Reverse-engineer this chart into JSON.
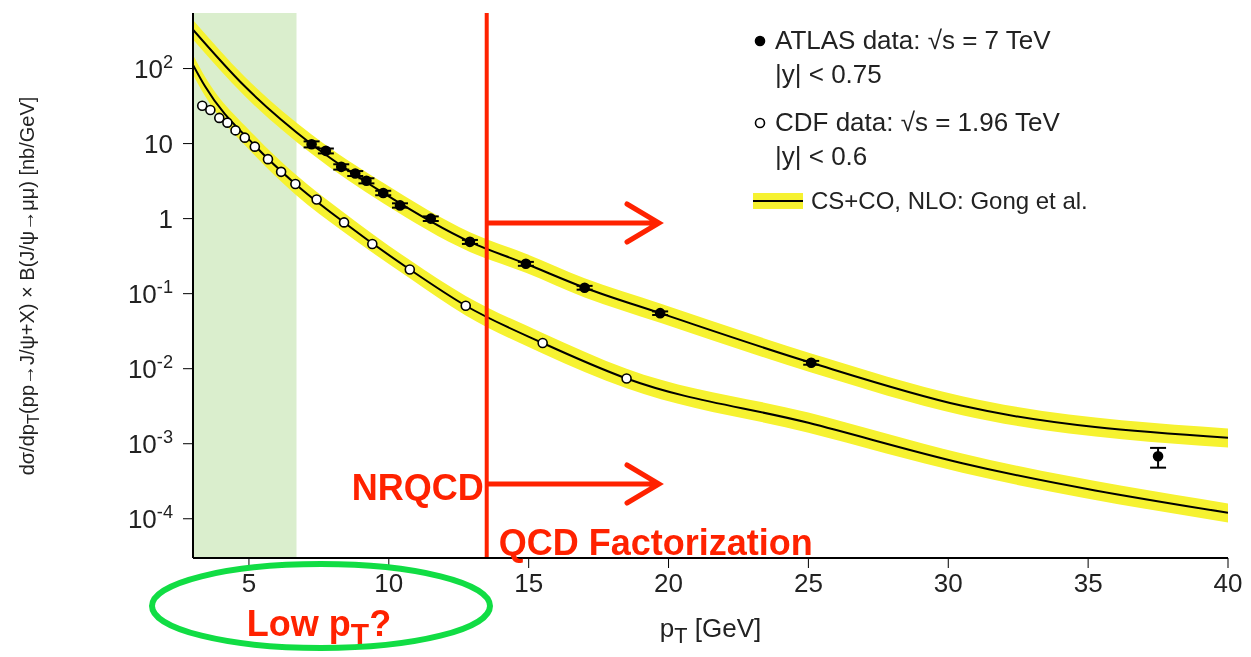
{
  "chart_data": {
    "type": "scatter",
    "xlabel": "p$_{T}$ [GeV]",
    "ylabel": "dσ/dp$_{T}$(pp→J/ψ+X) × B(J/ψ→μμ)  [nb/GeV]",
    "xlim": [
      3,
      40
    ],
    "xticks": [
      5,
      10,
      15,
      20,
      25,
      30,
      35,
      40
    ],
    "ylim": [
      3e-05,
      550
    ],
    "yticks": [
      {
        "value": 100,
        "label": "10$^{2}$"
      },
      10,
      1,
      {
        "value": 0.1,
        "label": "10$^{-1}$"
      },
      {
        "value": 0.01,
        "label": "10$^{-2}$"
      },
      {
        "value": 0.001,
        "label": "10$^{-3}$"
      },
      {
        "value": 0.0001,
        "label": "10$^{-4}$"
      }
    ],
    "log": "y",
    "grid": false,
    "legend": "top right",
    "series": [
      {
        "type": "line",
        "name": "CS+CO, NLO: Gong et al.",
        "color": "#000000",
        "marker": "none",
        "x": [
          3,
          4.85,
          7.24,
          9.8,
          12.9,
          14.9,
          17,
          19.7,
          25.1,
          30.5,
          40
        ],
        "values": [
          330,
          58,
          9.8,
          2.2,
          0.49,
          0.25,
          0.12,
          0.055,
          0.012,
          0.0032,
          0.0012
        ],
        "lower": [
          244,
          43,
          7.3,
          1.6,
          0.36,
          0.19,
          0.089,
          0.041,
          0.0089,
          0.0024,
          0.00089
        ],
        "upper": [
          445,
          78,
          13.2,
          3.0,
          0.66,
          0.34,
          0.16,
          0.074,
          0.016,
          0.0043,
          0.0016
        ]
      },
      {
        "type": "line",
        "color": "#000000",
        "marker": "none",
        "x": [
          3,
          3.43,
          5.2,
          6.66,
          8.4,
          10.75,
          12.75,
          15.5,
          18.5,
          25,
          30.5,
          40
        ],
        "values": [
          112,
          58,
          9.5,
          2.9,
          0.89,
          0.21,
          0.069,
          0.022,
          0.0074,
          0.0019,
          0.00055,
          0.00012
        ],
        "lower": [
          83,
          43,
          7.0,
          2.1,
          0.66,
          0.16,
          0.051,
          0.016,
          0.0055,
          0.0014,
          0.00041,
          8.9e-05
        ],
        "upper": [
          151,
          78,
          12.8,
          3.9,
          1.2,
          0.28,
          0.093,
          0.03,
          0.01,
          0.0026,
          0.00074,
          0.00016
        ]
      },
      {
        "type": "scatter",
        "name": "ATLAS data: √s = 7 TeV |y| < 0.75",
        "color": "#000000",
        "marker": "circle",
        "x": [
          7.24,
          7.75,
          8.3,
          8.8,
          9.2,
          9.8,
          10.4,
          11.5,
          12.9,
          14.9,
          17,
          19.7,
          25.1,
          37.5
        ],
        "values": [
          9.8,
          8.0,
          4.9,
          4.0,
          3.2,
          2.2,
          1.5,
          1.0,
          0.49,
          0.25,
          0.12,
          0.055,
          0.012,
          0.00068
        ],
        "errors": [
          0.9,
          0.6,
          0.4,
          0.3,
          0.25,
          0.15,
          0.1,
          0.07,
          0.03,
          0.015,
          0.007,
          0.003,
          0.0007,
          0.0002
        ]
      },
      {
        "type": "scatter",
        "name": "CDF data: √s = 1.96 TeV |y| < 0.6",
        "color": "#000000",
        "marker": "circle",
        "x": [
          3.33,
          3.62,
          3.94,
          4.23,
          4.52,
          4.85,
          5.21,
          5.68,
          6.15,
          6.66,
          7.42,
          8.4,
          9.41,
          10.75,
          12.75,
          15.5,
          18.5
        ],
        "values": [
          32,
          28,
          22,
          19,
          15,
          12,
          9.1,
          6.2,
          4.2,
          2.9,
          1.8,
          0.89,
          0.46,
          0.21,
          0.069,
          0.022,
          0.0074
        ]
      }
    ],
    "ref_lines": [
      {
        "axis": "x",
        "value": 13.5,
        "color": "#ff2200"
      }
    ],
    "bands": [
      {
        "axis": "x",
        "from": 3,
        "to": 6.7,
        "color": "#d4ebc4"
      }
    ],
    "annotations": [
      "NRQCD",
      "QCD Factorization",
      "Low p$_{T}$?"
    ]
  }
}
